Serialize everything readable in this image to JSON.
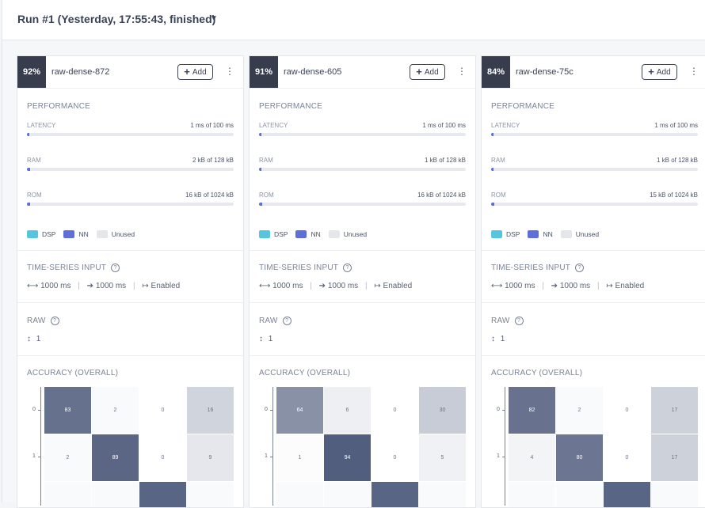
{
  "header": {
    "title": "Run #1 (Yesterday, 17:55:43, finished)",
    "caret": "▼"
  },
  "labels": {
    "performance": "PERFORMANCE",
    "latency": "LATENCY",
    "ram": "RAM",
    "rom": "ROM",
    "timeseries": "TIME-SERIES INPUT",
    "raw": "RAW",
    "accuracy": "ACCURACY (OVERALL)",
    "add": "Add",
    "help": "?",
    "legend": {
      "dsp": "DSP",
      "nn": "NN",
      "unused": "Unused"
    }
  },
  "colors": {
    "dsp": "#56c6df",
    "nn": "#5f6fd9",
    "unused": "#e4e6ea",
    "badge": "#383d4d"
  },
  "icons": {
    "plus": "+",
    "kebab": "⋮",
    "width": "⟷",
    "stride": "➔",
    "enabled": "↦",
    "axes": "↕"
  },
  "cards": [
    {
      "pct": "92%",
      "name": "raw-dense-872",
      "latency": {
        "text": "1 ms of 100 ms",
        "fraction": 0.01
      },
      "ram": {
        "text": "2 kB of 128 kB",
        "fraction": 0.016
      },
      "rom": {
        "text": "16 kB of 1024 kB",
        "fraction": 0.016
      },
      "window": "1000 ms",
      "stride": "1000 ms",
      "zero_pad": "Enabled",
      "raw_axes": "1",
      "matrix": {
        "row_labels": [
          "0",
          "1"
        ],
        "rows": [
          [
            "83",
            "2",
            "0",
            "16"
          ],
          [
            "2",
            "89",
            "0",
            "9"
          ],
          [
            "",
            "",
            "",
            ""
          ]
        ]
      }
    },
    {
      "pct": "91%",
      "name": "raw-dense-605",
      "latency": {
        "text": "1 ms of 100 ms",
        "fraction": 0.01
      },
      "ram": {
        "text": "1 kB of 128 kB",
        "fraction": 0.008
      },
      "rom": {
        "text": "16 kB of 1024 kB",
        "fraction": 0.016
      },
      "window": "1000 ms",
      "stride": "1000 ms",
      "zero_pad": "Enabled",
      "raw_axes": "1",
      "matrix": {
        "row_labels": [
          "0",
          "1"
        ],
        "rows": [
          [
            "64",
            "6",
            "0",
            "30"
          ],
          [
            "1",
            "94",
            "0",
            "5"
          ],
          [
            "",
            "",
            "",
            ""
          ]
        ]
      }
    },
    {
      "pct": "84%",
      "name": "raw-dense-75c",
      "latency": {
        "text": "1 ms of 100 ms",
        "fraction": 0.01
      },
      "ram": {
        "text": "1 kB of 128 kB",
        "fraction": 0.008
      },
      "rom": {
        "text": "15 kB of 1024 kB",
        "fraction": 0.015
      },
      "window": "1000 ms",
      "stride": "1000 ms",
      "zero_pad": "Enabled",
      "raw_axes": "1",
      "matrix": {
        "row_labels": [
          "0",
          "1"
        ],
        "rows": [
          [
            "82",
            "2",
            "0",
            "17"
          ],
          [
            "4",
            "80",
            "0",
            "17"
          ],
          [
            "",
            "",
            "",
            ""
          ]
        ]
      }
    }
  ]
}
